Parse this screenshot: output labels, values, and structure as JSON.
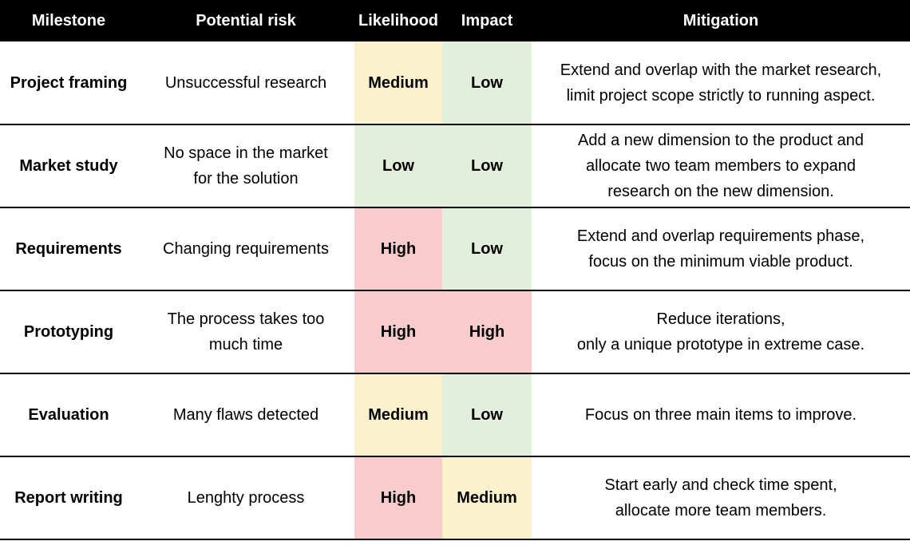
{
  "table": {
    "headers": {
      "milestone": "Milestone",
      "risk": "Potential risk",
      "likelihood": "Likelihood",
      "impact": "Impact",
      "mitigation": "Mitigation"
    },
    "level_colors": {
      "Low": "#e2efda",
      "Medium": "#fcf1cd",
      "High": "#f8cbcc"
    },
    "rows": [
      {
        "milestone": "Project framing",
        "risk": [
          "Unsuccessful research"
        ],
        "likelihood": "Medium",
        "impact": "Low",
        "mitigation": [
          "Extend and overlap with the market research,",
          "limit project scope strictly to running aspect."
        ]
      },
      {
        "milestone": "Market study",
        "risk": [
          "No space in the market",
          "for the solution"
        ],
        "likelihood": "Low",
        "impact": "Low",
        "mitigation": [
          "Add a new dimension to the product and",
          "allocate two team members to expand",
          "research on the new dimension."
        ]
      },
      {
        "milestone": "Requirements",
        "risk": [
          "Changing requirements"
        ],
        "likelihood": "High",
        "impact": "Low",
        "mitigation": [
          "Extend and overlap requirements phase,",
          "focus on the minimum viable product."
        ]
      },
      {
        "milestone": "Prototyping",
        "risk": [
          "The process takes too",
          "much time"
        ],
        "likelihood": "High",
        "impact": "High",
        "mitigation": [
          "Reduce iterations,",
          "only a unique prototype in extreme case."
        ]
      },
      {
        "milestone": "Evaluation",
        "risk": [
          "Many flaws detected"
        ],
        "likelihood": "Medium",
        "impact": "Low",
        "mitigation": [
          "Focus on three main items to improve."
        ]
      },
      {
        "milestone": "Report writing",
        "risk": [
          "Lenghty process"
        ],
        "likelihood": "High",
        "impact": "Medium",
        "mitigation": [
          "Start early and check time spent,",
          "allocate more team members."
        ]
      }
    ]
  }
}
